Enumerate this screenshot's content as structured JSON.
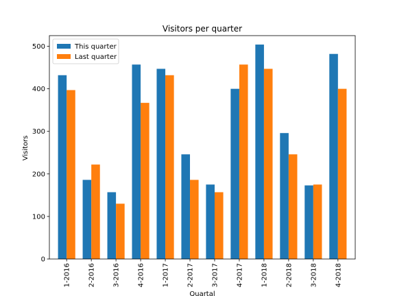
{
  "chart_data": {
    "type": "bar",
    "title": "Visitors per quarter",
    "xlabel": "Quartal",
    "ylabel": "Visitors",
    "ylim": [
      0,
      525
    ],
    "yticks": [
      0,
      100,
      200,
      300,
      400,
      500
    ],
    "categories": [
      "1-2016",
      "2-2016",
      "3-2016",
      "4-2016",
      "1-2017",
      "2-2017",
      "3-2017",
      "4-2017",
      "1-2018",
      "2-2018",
      "3-2018",
      "4-2018"
    ],
    "series": [
      {
        "name": "This quarter",
        "color": "#1f77b4",
        "values": [
          432,
          186,
          157,
          457,
          447,
          246,
          175,
          400,
          504,
          296,
          173,
          482
        ]
      },
      {
        "name": "Last quarter",
        "color": "#ff7f0e",
        "values": [
          397,
          222,
          130,
          367,
          432,
          186,
          157,
          457,
          447,
          246,
          175,
          400
        ]
      }
    ],
    "legend_position": "top-left",
    "grid": false
  }
}
